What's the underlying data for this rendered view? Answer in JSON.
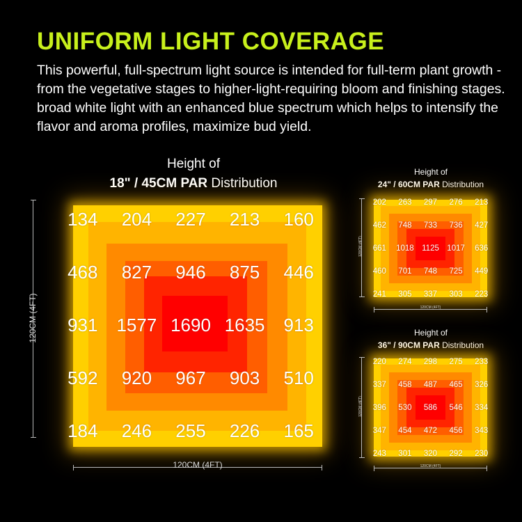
{
  "headline": "UNIFORM LIGHT COVERAGE",
  "description": "This powerful, full-spectrum light source is intended for full-term plant growth - from the vegetative stages to higher-light-requiring bloom and finishing stages.   broad white light with an enhanced blue spectrum which helps to intensify the flavor and aroma profiles, maximize bud yield.",
  "colors": {
    "headline": "#c8f01c",
    "outer": "#ffd000",
    "ring1": "#ffb400",
    "ring2": "#ff8a00",
    "ring3": "#ff5e00",
    "ring4": "#ff2400",
    "center": "#ff0000"
  },
  "panels": [
    {
      "title_line1": "Height of",
      "title_bold": "18\" / 45CM PAR",
      "title_rest": " Distribution",
      "width_label": "120CM (4FT)",
      "height_label": "120CM (4FT)",
      "values": [
        [
          "134",
          "204",
          "227",
          "213",
          "160"
        ],
        [
          "468",
          "827",
          "946",
          "875",
          "446"
        ],
        [
          "931",
          "1577",
          "1690",
          "1635",
          "913"
        ],
        [
          "592",
          "920",
          "967",
          "903",
          "510"
        ],
        [
          "184",
          "246",
          "255",
          "226",
          "165"
        ]
      ]
    },
    {
      "title_line1": "Height of",
      "title_bold": "24\" / 60CM PAR",
      "title_rest": " Distribution",
      "width_label": "120CM (4FT)",
      "height_label": "120CM (4FT)",
      "values": [
        [
          "202",
          "263",
          "297",
          "276",
          "213"
        ],
        [
          "462",
          "748",
          "733",
          "736",
          "427"
        ],
        [
          "661",
          "1018",
          "1125",
          "1017",
          "636"
        ],
        [
          "460",
          "701",
          "748",
          "725",
          "449"
        ],
        [
          "241",
          "305",
          "337",
          "303",
          "223"
        ]
      ]
    },
    {
      "title_line1": "Height of",
      "title_bold": "36\" / 90CM PAR",
      "title_rest": " Distribution",
      "width_label": "120CM (4FT)",
      "height_label": "120CM (4FT)",
      "values": [
        [
          "220",
          "274",
          "298",
          "275",
          "233"
        ],
        [
          "337",
          "458",
          "487",
          "465",
          "326"
        ],
        [
          "396",
          "530",
          "586",
          "546",
          "334"
        ],
        [
          "347",
          "454",
          "472",
          "456",
          "343"
        ],
        [
          "243",
          "301",
          "320",
          "292",
          "230"
        ]
      ]
    }
  ]
}
